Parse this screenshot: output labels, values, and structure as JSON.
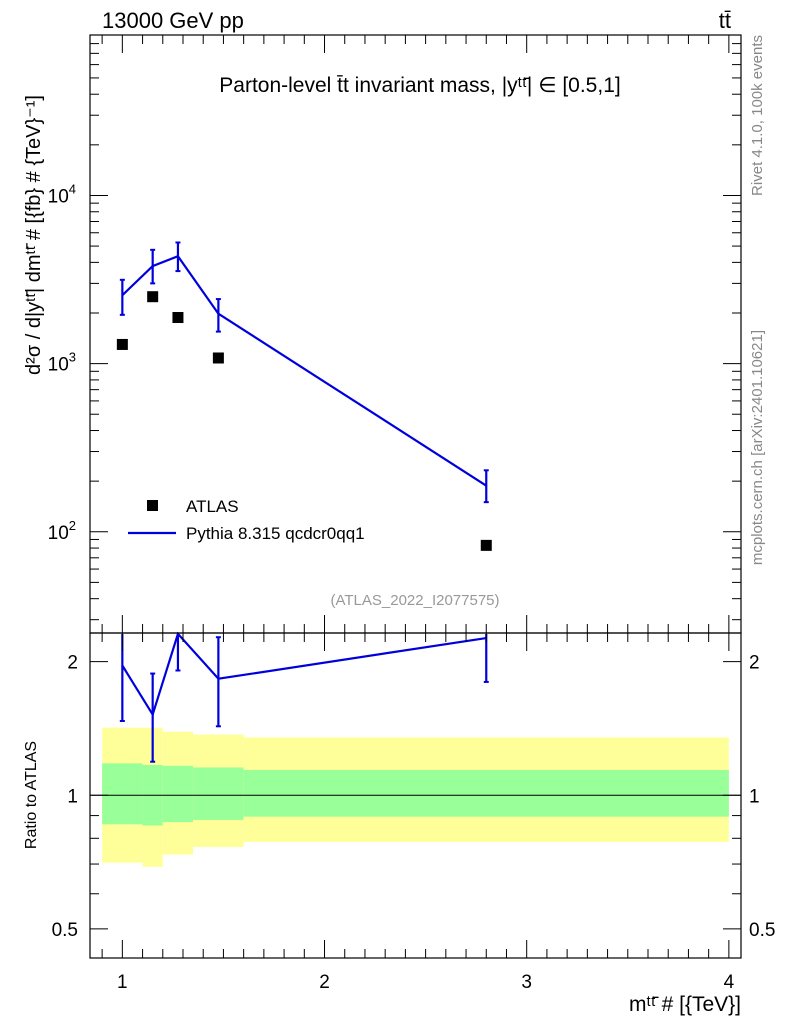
{
  "header": {
    "energy_label": "13000 GeV pp",
    "process_label": "tt̄"
  },
  "side_labels": {
    "rivet": "Rivet 4.1.0,  100k events",
    "mcplots": "mcplots.cern.ch [arXiv:2401.10621]"
  },
  "watermark": "(ATLAS_2022_I2077575)",
  "colors": {
    "mc": "#0000dd",
    "band_inner": "#99ff99",
    "band_outer": "#ffff99",
    "data": "#000000"
  },
  "chart_data": [
    {
      "type": "scatter",
      "title": "Parton-level t̄t invariant mass, |yᵗᵗ̄| ∈ [0.5,1]",
      "ylabel": "d²σ / d|yᵗᵗ̄| dmᵗᵗ̄ # [{fb} # {TeV}⁻¹]",
      "yscale": "log",
      "ylim": [
        25,
        90000
      ],
      "xlim": [
        0.84,
        4.06
      ],
      "y_ticks": [
        {
          "value": 100,
          "base": "10",
          "exp": "2"
        },
        {
          "value": 1000,
          "base": "10",
          "exp": "3"
        },
        {
          "value": 10000,
          "base": "10",
          "exp": "4"
        }
      ],
      "legend": {
        "placement": "lower-left",
        "entries": [
          "ATLAS",
          "Pythia 8.315 qcdcr0qq1"
        ]
      },
      "series": [
        {
          "name": "ATLAS",
          "marker": "square",
          "x": [
            1.0,
            1.15,
            1.275,
            1.475,
            2.8
          ],
          "y": [
            1300,
            2500,
            1880,
            1080,
            83
          ]
        },
        {
          "name": "Pythia 8.315 qcdcr0qq1",
          "marker": "line",
          "x": [
            1.0,
            1.15,
            1.275,
            1.475,
            2.8
          ],
          "y": [
            2550,
            3800,
            4350,
            1980,
            188
          ],
          "err_low": [
            1950,
            3000,
            3550,
            1550,
            150
          ],
          "err_high": [
            3150,
            4750,
            5250,
            2420,
            232
          ]
        }
      ]
    },
    {
      "type": "line",
      "ylabel": "Ratio to ATLAS",
      "xlabel": "mᵗᵗ̄ # [{TeV}]",
      "ylim": [
        0.43,
        2.32
      ],
      "yscale": "log",
      "xlim": [
        0.84,
        4.06
      ],
      "x_ticks": [
        "1",
        "2",
        "3",
        "4"
      ],
      "y_ticks": [
        "0.5",
        "1",
        "2"
      ],
      "series": [
        {
          "name": "Pythia 8.315 qcdcr0qq1 / ATLAS",
          "x": [
            1.0,
            1.15,
            1.275,
            1.475,
            2.8
          ],
          "y": [
            1.96,
            1.52,
            2.31,
            1.83,
            2.26
          ],
          "err_low": [
            1.47,
            1.19,
            1.91,
            1.43,
            1.8
          ],
          "err_high": [
            2.57,
            1.88,
            2.83,
            2.27,
            2.78
          ]
        }
      ],
      "bands": {
        "edges": [
          0.9,
          1.1,
          1.2,
          1.35,
          1.6,
          4.0
        ],
        "inner_low": [
          0.86,
          0.855,
          0.87,
          0.88,
          0.895
        ],
        "inner_high": [
          1.18,
          1.17,
          1.165,
          1.155,
          1.14
        ],
        "outer_low": [
          0.705,
          0.69,
          0.735,
          0.765,
          0.785
        ],
        "outer_high": [
          1.42,
          1.42,
          1.39,
          1.37,
          1.35
        ]
      },
      "reference_line": 1
    }
  ]
}
